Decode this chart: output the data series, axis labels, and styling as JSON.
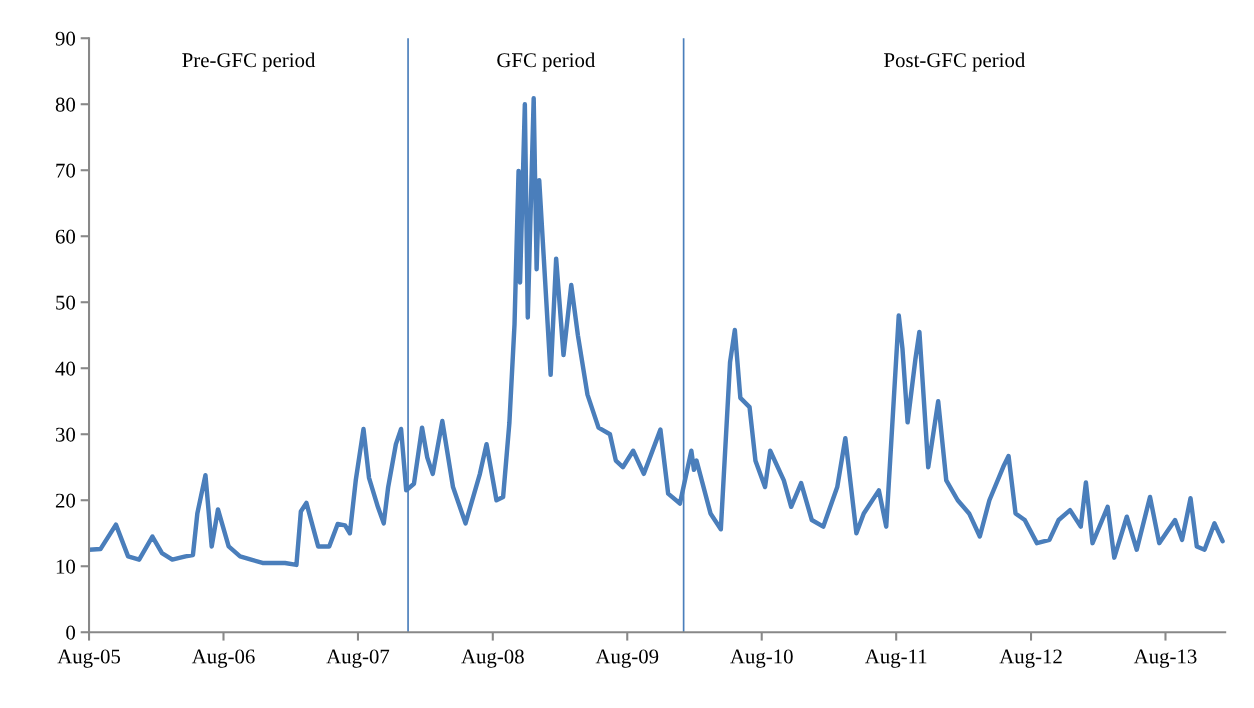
{
  "chart_data": {
    "type": "line",
    "x": [
      "2005-08-01",
      "2005-09-01",
      "2005-10-13",
      "2005-11-15",
      "2005-12-15",
      "2006-01-20",
      "2006-02-15",
      "2006-03-15",
      "2006-04-20",
      "2006-05-10",
      "2006-05-22",
      "2006-06-13",
      "2006-06-30",
      "2006-07-17",
      "2006-08-15",
      "2006-09-15",
      "2006-10-15",
      "2006-11-15",
      "2006-12-15",
      "2007-01-15",
      "2007-02-15",
      "2007-02-27",
      "2007-03-14",
      "2007-04-15",
      "2007-05-15",
      "2007-06-07",
      "2007-06-27",
      "2007-07-10",
      "2007-07-26",
      "2007-08-16",
      "2007-08-31",
      "2007-09-24",
      "2007-10-10",
      "2007-10-22",
      "2007-11-12",
      "2007-11-26",
      "2007-12-10",
      "2007-12-31",
      "2008-01-22",
      "2008-02-05",
      "2008-02-20",
      "2008-03-17",
      "2008-04-15",
      "2008-05-19",
      "2008-06-27",
      "2008-07-15",
      "2008-08-11",
      "2008-08-29",
      "2008-09-15",
      "2008-09-29",
      "2008-10-10",
      "2008-10-14",
      "2008-10-27",
      "2008-11-04",
      "2008-11-20",
      "2008-11-28",
      "2008-12-05",
      "2009-01-05",
      "2009-01-20",
      "2009-02-09",
      "2009-03-02",
      "2009-03-20",
      "2009-04-15",
      "2009-05-15",
      "2009-06-15",
      "2009-07-01",
      "2009-07-20",
      "2009-08-17",
      "2009-09-15",
      "2009-10-30",
      "2009-11-20",
      "2009-12-22",
      "2010-01-22",
      "2010-01-29",
      "2010-02-05",
      "2010-03-15",
      "2010-04-12",
      "2010-05-07",
      "2010-05-20",
      "2010-06-04",
      "2010-06-29",
      "2010-07-15",
      "2010-08-10",
      "2010-08-24",
      "2010-09-30",
      "2010-10-20",
      "2010-11-16",
      "2010-12-15",
      "2011-01-15",
      "2011-02-22",
      "2011-03-16",
      "2011-04-15",
      "2011-05-05",
      "2011-06-15",
      "2011-07-05",
      "2011-08-08",
      "2011-08-18",
      "2011-09-01",
      "2011-09-22",
      "2011-10-03",
      "2011-10-27",
      "2011-11-23",
      "2011-12-15",
      "2012-01-15",
      "2012-02-15",
      "2012-03-15",
      "2012-04-10",
      "2012-05-18",
      "2012-06-01",
      "2012-06-20",
      "2012-07-15",
      "2012-08-17",
      "2012-09-20",
      "2012-10-15",
      "2012-11-15",
      "2012-12-14",
      "2012-12-28",
      "2013-01-15",
      "2013-02-25",
      "2013-03-15",
      "2013-04-18",
      "2013-05-15",
      "2013-06-20",
      "2013-07-15",
      "2013-08-27",
      "2013-09-15",
      "2013-10-08",
      "2013-10-25",
      "2013-11-15",
      "2013-12-12",
      "2014-01-03"
    ],
    "series": [
      {
        "color": "#4a7ebb",
        "values": [
          12.5,
          12.6,
          16.3,
          11.5,
          11,
          14.5,
          12,
          11,
          11.5,
          11.7,
          18,
          23.8,
          13,
          18.6,
          13,
          11.5,
          11,
          10.5,
          10.5,
          10.5,
          10.2,
          18.3,
          19.6,
          13,
          13,
          16.4,
          16.2,
          15,
          23,
          30.8,
          23.4,
          19,
          16.5,
          22,
          28.5,
          30.8,
          21.5,
          22.5,
          31,
          26.5,
          24,
          32,
          22,
          16.5,
          24,
          28.5,
          20,
          20.5,
          31.7,
          46.7,
          69.9,
          53,
          80,
          47.7,
          80.9,
          55,
          68.5,
          39,
          56.6,
          42,
          52.6,
          45,
          36,
          31,
          30,
          26,
          25,
          27.5,
          24,
          30.7,
          21,
          19.5,
          27.5,
          24.6,
          26,
          18,
          15.6,
          40.9,
          45.8,
          35.5,
          34.1,
          26,
          22,
          27.5,
          23,
          19,
          22.6,
          17,
          16,
          22,
          29.4,
          15,
          18,
          21.5,
          16,
          48,
          43,
          31.8,
          41.3,
          45.5,
          25,
          35,
          23,
          20,
          18,
          14.5,
          20,
          25.1,
          26.7,
          18,
          17,
          13.5,
          14,
          17,
          18.5,
          16,
          22.7,
          13.5,
          19,
          11.3,
          17.5,
          12.5,
          20.5,
          13.5,
          17,
          14,
          20.3,
          13,
          12.5,
          16.5,
          13.8
        ]
      }
    ],
    "xlim": [
      "2005-08-01",
      "2014-01-10"
    ],
    "xticks": [
      {
        "value": "2005-08-01",
        "label": "Aug-05"
      },
      {
        "value": "2006-08-01",
        "label": "Aug-06"
      },
      {
        "value": "2007-08-01",
        "label": "Aug-07"
      },
      {
        "value": "2008-08-01",
        "label": "Aug-08"
      },
      {
        "value": "2009-08-01",
        "label": "Aug-09"
      },
      {
        "value": "2010-08-01",
        "label": "Aug-10"
      },
      {
        "value": "2011-08-01",
        "label": "Aug-11"
      },
      {
        "value": "2012-08-01",
        "label": "Aug-12"
      },
      {
        "value": "2013-08-01",
        "label": "Aug-13"
      }
    ],
    "ylim": [
      0,
      90
    ],
    "yticks": [
      0,
      10,
      20,
      30,
      40,
      50,
      60,
      70,
      80,
      90
    ],
    "ref_lines": [
      {
        "axis": "x",
        "value": "2007-12-15",
        "color": "#4a7ebb"
      },
      {
        "axis": "x",
        "value": "2010-01-01",
        "color": "#4a7ebb"
      }
    ],
    "annotations": [
      "Pre-GFC period",
      "GFC period",
      "Post-GFC period"
    ],
    "grid": false,
    "marker": "none",
    "line_style": "solid"
  }
}
